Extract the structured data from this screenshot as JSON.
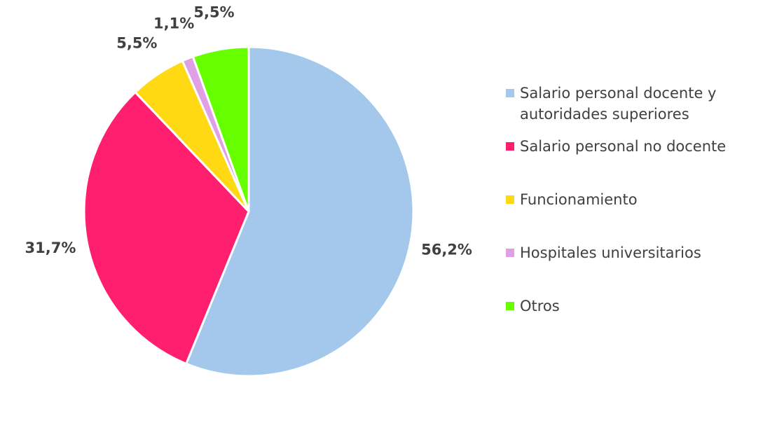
{
  "chart_data": {
    "type": "pie",
    "categories": [
      "Salario personal docente y autoridades superiores",
      "Salario personal no docente",
      "Funcionamiento",
      "Hospitales universitarios",
      "Otros"
    ],
    "values": [
      56.2,
      31.7,
      5.5,
      1.1,
      5.5
    ],
    "value_labels": [
      "56,2%",
      "31,7%",
      "5,5%",
      "1,1%",
      "5,5%"
    ],
    "colors": [
      "#a3c8ec",
      "#ff1f6e",
      "#ffd914",
      "#dfa0e6",
      "#66ff00"
    ],
    "legend": "right"
  }
}
